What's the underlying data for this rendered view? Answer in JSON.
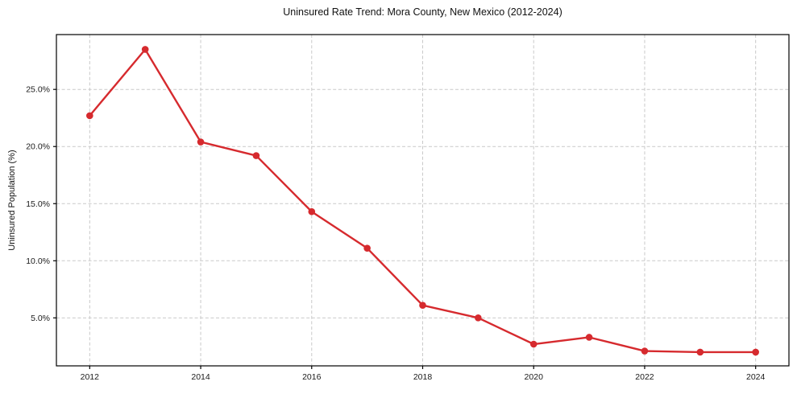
{
  "title": "Uninsured Rate Trend: Mora County, New Mexico (2012-2024)",
  "chart_data": {
    "type": "line",
    "title": "Uninsured Rate Trend: Mora County, New Mexico (2012-2024)",
    "xlabel": "",
    "ylabel": "Uninsured Population (%)",
    "x": [
      2012,
      2013,
      2014,
      2015,
      2016,
      2017,
      2018,
      2019,
      2020,
      2021,
      2022,
      2023,
      2024
    ],
    "series": [
      {
        "name": "Uninsured Rate",
        "values": [
          22.7,
          28.5,
          20.4,
          19.2,
          14.3,
          11.1,
          6.1,
          5.0,
          2.7,
          3.3,
          2.1,
          2.0,
          2.0
        ]
      }
    ],
    "xticks": [
      2012,
      2014,
      2016,
      2018,
      2020,
      2022,
      2024
    ],
    "xtick_labels": [
      "2012",
      "2014",
      "2016",
      "2018",
      "2020",
      "2022",
      "2024"
    ],
    "yticks": [
      5,
      10,
      15,
      20,
      25
    ],
    "ytick_labels": [
      "5.0%",
      "10.0%",
      "15.0%",
      "20.0%",
      "25.0%"
    ],
    "xlim": [
      2011.4,
      2024.6
    ],
    "ylim": [
      0.8,
      29.8
    ],
    "grid": true,
    "legend_position": "none",
    "marker": "circle",
    "colors": {
      "line": "#d62a2e",
      "grid": "#c9c9c9",
      "axis": "#000000",
      "text": "#1a1a1a",
      "background": "#ffffff"
    }
  }
}
